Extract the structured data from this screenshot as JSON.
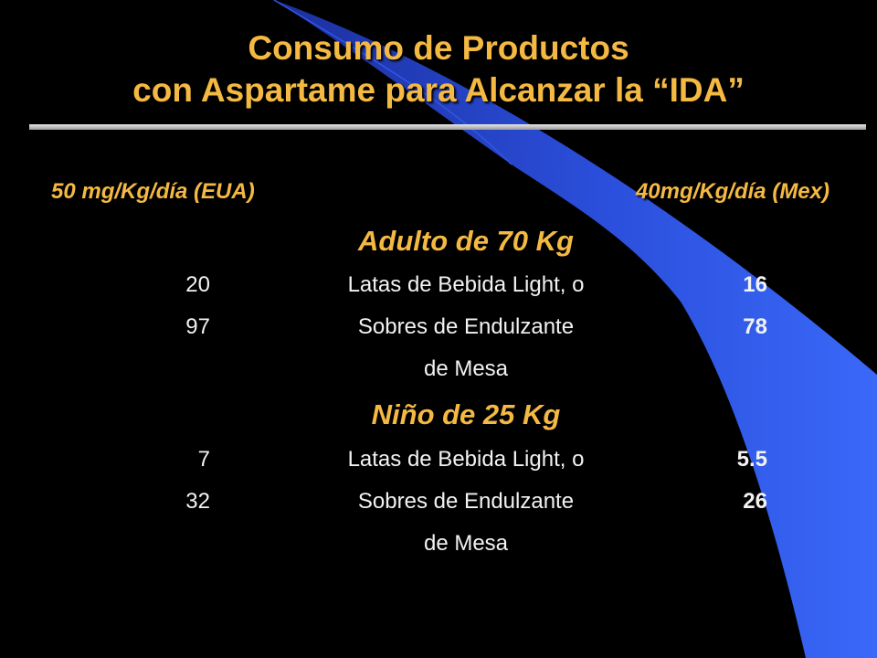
{
  "title": {
    "line1": "Consumo de Productos",
    "line2": "con Aspartame para Alcanzar la “IDA”"
  },
  "headers": {
    "left": "50 mg/Kg/día (EUA)",
    "right": "40mg/Kg/día (Mex)"
  },
  "groups": [
    {
      "title": "Adulto de 70 Kg",
      "rows": [
        {
          "left": "20",
          "desc": "Latas de Bebida Light, o",
          "right": "16"
        },
        {
          "left": "97",
          "desc": "Sobres de Endulzante",
          "right": "78"
        },
        {
          "left": "",
          "desc": "de Mesa",
          "right": ""
        }
      ]
    },
    {
      "title": "Niño de 25 Kg",
      "rows": [
        {
          "left": "7",
          "desc": "Latas de Bebida Light, o",
          "right": "5.5"
        },
        {
          "left": "32",
          "desc": "Sobres de Endulzante",
          "right": "26"
        },
        {
          "left": "",
          "desc": "de Mesa",
          "right": ""
        }
      ]
    }
  ],
  "colors": {
    "background": "#000000",
    "accent": "#f4b942",
    "decoration": "#2f56e6"
  }
}
